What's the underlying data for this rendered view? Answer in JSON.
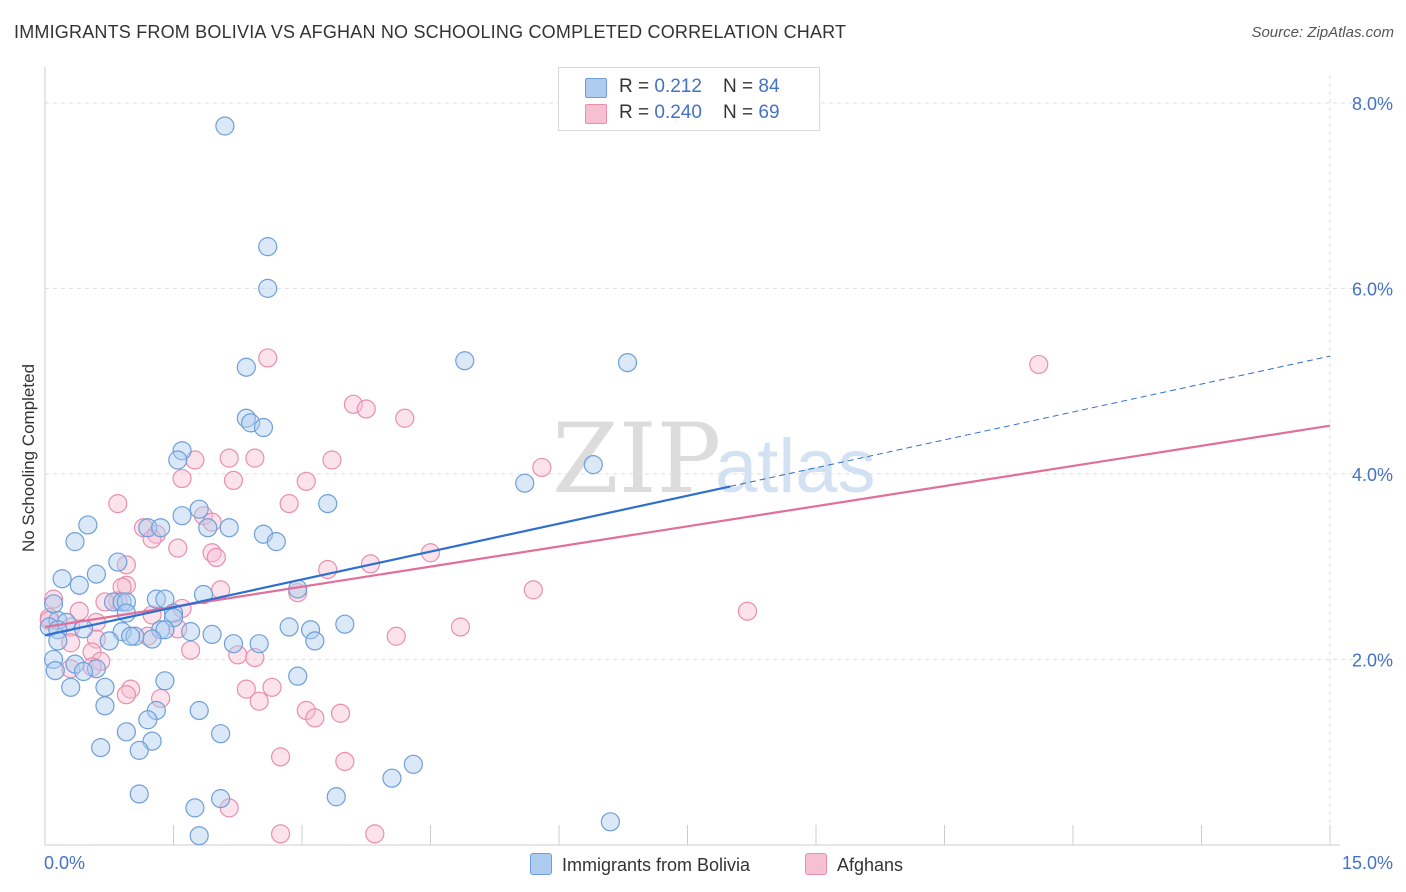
{
  "header": {
    "title": "IMMIGRANTS FROM BOLIVIA VS AFGHAN NO SCHOOLING COMPLETED CORRELATION CHART",
    "source": "Source: ZipAtlas.com"
  },
  "watermark": {
    "zip": "ZIP",
    "atlas": "atlas"
  },
  "colors": {
    "blue_fill": "#aecbf0",
    "blue_stroke": "#6f9fd8",
    "blue_line": "#2f6fcf",
    "pink_fill": "#f7bfd2",
    "pink_stroke": "#e88fb0",
    "pink_line": "#e06f9a",
    "tick_text": "#4472c4",
    "grid": "#dddddd"
  },
  "legend": {
    "rows": [
      {
        "r_label": "R = ",
        "r_value": "0.212",
        "n_label": "N = ",
        "n_value": "84"
      },
      {
        "r_label": "R = ",
        "r_value": "0.240",
        "n_label": "N = ",
        "n_value": "69"
      }
    ]
  },
  "bottom_legend": {
    "series1": "Immigrants from Bolivia",
    "series2": "Afghans"
  },
  "chart_data": {
    "type": "scatter",
    "title": "IMMIGRANTS FROM BOLIVIA VS AFGHAN NO SCHOOLING COMPLETED CORRELATION CHART",
    "xlabel": "",
    "ylabel": "No Schooling Completed",
    "xlim": [
      0,
      15
    ],
    "ylim": [
      0,
      8.3
    ],
    "x_tick_labels": [
      "0.0%",
      "15.0%"
    ],
    "y_ticks": [
      2,
      4,
      6,
      8
    ],
    "y_tick_labels": [
      "2.0%",
      "4.0%",
      "6.0%",
      "8.0%"
    ],
    "grid": true,
    "series": [
      {
        "name": "Immigrants from Bolivia",
        "r": 0.212,
        "n": 84,
        "trend": {
          "x0": 0,
          "y0": 2.26,
          "x1": 15,
          "y1": 5.27,
          "solid_until_x": 8.0
        },
        "points": [
          [
            2.1,
            7.75
          ],
          [
            2.6,
            6.45
          ],
          [
            2.6,
            6.0
          ],
          [
            2.35,
            5.15
          ],
          [
            4.9,
            5.22
          ],
          [
            6.8,
            5.2
          ],
          [
            2.35,
            4.6
          ],
          [
            2.4,
            4.55
          ],
          [
            2.55,
            4.5
          ],
          [
            1.6,
            4.25
          ],
          [
            1.55,
            4.15
          ],
          [
            6.4,
            4.1
          ],
          [
            5.6,
            3.9
          ],
          [
            3.3,
            3.68
          ],
          [
            1.8,
            3.62
          ],
          [
            1.6,
            3.55
          ],
          [
            0.5,
            3.45
          ],
          [
            1.2,
            3.42
          ],
          [
            1.35,
            3.42
          ],
          [
            1.9,
            3.42
          ],
          [
            2.15,
            3.42
          ],
          [
            2.55,
            3.35
          ],
          [
            2.7,
            3.27
          ],
          [
            0.35,
            3.27
          ],
          [
            0.85,
            3.05
          ],
          [
            0.6,
            2.92
          ],
          [
            0.2,
            2.87
          ],
          [
            0.4,
            2.8
          ],
          [
            2.95,
            2.76
          ],
          [
            1.85,
            2.7
          ],
          [
            1.3,
            2.65
          ],
          [
            1.4,
            2.65
          ],
          [
            0.8,
            2.62
          ],
          [
            0.9,
            2.62
          ],
          [
            0.95,
            2.62
          ],
          [
            0.1,
            2.6
          ],
          [
            0.95,
            2.5
          ],
          [
            1.5,
            2.5
          ],
          [
            1.5,
            2.45
          ],
          [
            0.15,
            2.42
          ],
          [
            0.25,
            2.4
          ],
          [
            0.05,
            2.35
          ],
          [
            0.15,
            2.32
          ],
          [
            0.45,
            2.33
          ],
          [
            3.5,
            2.38
          ],
          [
            2.85,
            2.35
          ],
          [
            3.1,
            2.32
          ],
          [
            1.35,
            2.32
          ],
          [
            1.4,
            2.32
          ],
          [
            0.9,
            2.3
          ],
          [
            1.7,
            2.3
          ],
          [
            1.95,
            2.27
          ],
          [
            1.05,
            2.25
          ],
          [
            1.0,
            2.25
          ],
          [
            1.25,
            2.22
          ],
          [
            0.15,
            2.2
          ],
          [
            0.75,
            2.2
          ],
          [
            3.15,
            2.2
          ],
          [
            2.2,
            2.17
          ],
          [
            2.5,
            2.17
          ],
          [
            0.1,
            2.0
          ],
          [
            0.35,
            1.95
          ],
          [
            0.6,
            1.9
          ],
          [
            0.45,
            1.87
          ],
          [
            0.12,
            1.88
          ],
          [
            2.95,
            1.82
          ],
          [
            1.4,
            1.77
          ],
          [
            0.3,
            1.7
          ],
          [
            0.7,
            1.7
          ],
          [
            0.7,
            1.5
          ],
          [
            1.8,
            1.45
          ],
          [
            1.3,
            1.45
          ],
          [
            1.2,
            1.35
          ],
          [
            0.95,
            1.22
          ],
          [
            2.05,
            1.2
          ],
          [
            1.25,
            1.12
          ],
          [
            0.65,
            1.05
          ],
          [
            1.1,
            1.02
          ],
          [
            4.3,
            0.87
          ],
          [
            4.05,
            0.72
          ],
          [
            1.1,
            0.55
          ],
          [
            3.4,
            0.52
          ],
          [
            2.05,
            0.5
          ],
          [
            1.75,
            0.4
          ],
          [
            6.6,
            0.25
          ],
          [
            1.8,
            0.1
          ]
        ]
      },
      {
        "name": "Afghans",
        "r": 0.24,
        "n": 69,
        "trend": {
          "x0": 0,
          "y0": 2.35,
          "x1": 15,
          "y1": 4.52
        },
        "points": [
          [
            2.6,
            5.25
          ],
          [
            11.6,
            5.18
          ],
          [
            3.6,
            4.75
          ],
          [
            3.75,
            4.7
          ],
          [
            4.2,
            4.6
          ],
          [
            2.15,
            4.17
          ],
          [
            2.45,
            4.17
          ],
          [
            3.35,
            4.15
          ],
          [
            1.75,
            4.15
          ],
          [
            5.8,
            4.07
          ],
          [
            1.6,
            3.95
          ],
          [
            2.2,
            3.93
          ],
          [
            3.05,
            3.92
          ],
          [
            0.85,
            3.68
          ],
          [
            2.85,
            3.68
          ],
          [
            1.85,
            3.55
          ],
          [
            1.95,
            3.48
          ],
          [
            1.15,
            3.42
          ],
          [
            1.3,
            3.35
          ],
          [
            1.25,
            3.3
          ],
          [
            1.55,
            3.2
          ],
          [
            1.95,
            3.15
          ],
          [
            2.0,
            3.1
          ],
          [
            4.5,
            3.15
          ],
          [
            3.8,
            3.03
          ],
          [
            0.95,
            3.02
          ],
          [
            3.3,
            2.97
          ],
          [
            0.95,
            2.8
          ],
          [
            0.9,
            2.78
          ],
          [
            2.05,
            2.75
          ],
          [
            5.7,
            2.75
          ],
          [
            2.95,
            2.72
          ],
          [
            0.1,
            2.65
          ],
          [
            0.85,
            2.63
          ],
          [
            0.7,
            2.62
          ],
          [
            1.6,
            2.55
          ],
          [
            0.4,
            2.52
          ],
          [
            1.25,
            2.48
          ],
          [
            8.2,
            2.52
          ],
          [
            0.05,
            2.45
          ],
          [
            0.05,
            2.42
          ],
          [
            0.6,
            2.4
          ],
          [
            0.3,
            2.35
          ],
          [
            1.55,
            2.33
          ],
          [
            4.85,
            2.35
          ],
          [
            1.2,
            2.25
          ],
          [
            4.1,
            2.25
          ],
          [
            0.6,
            2.22
          ],
          [
            0.3,
            2.18
          ],
          [
            1.7,
            2.1
          ],
          [
            0.55,
            2.08
          ],
          [
            2.25,
            2.05
          ],
          [
            2.45,
            2.02
          ],
          [
            0.65,
            1.98
          ],
          [
            0.55,
            1.92
          ],
          [
            0.3,
            1.9
          ],
          [
            2.65,
            1.7
          ],
          [
            2.35,
            1.68
          ],
          [
            1.0,
            1.68
          ],
          [
            0.95,
            1.62
          ],
          [
            1.35,
            1.58
          ],
          [
            2.5,
            1.55
          ],
          [
            3.05,
            1.45
          ],
          [
            3.45,
            1.42
          ],
          [
            3.15,
            1.37
          ],
          [
            2.75,
            0.95
          ],
          [
            3.5,
            0.9
          ],
          [
            2.15,
            0.4
          ],
          [
            2.75,
            0.12
          ],
          [
            3.85,
            0.12
          ]
        ]
      }
    ]
  }
}
